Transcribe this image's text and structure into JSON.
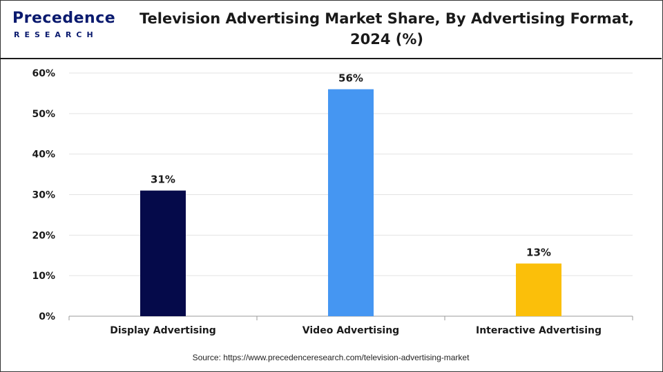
{
  "logo": {
    "name": "Precedence",
    "sub": "RESEARCH"
  },
  "title_line1": "Television Advertising Market Share, By Advertising Format,",
  "title_line2": "2024 (%)",
  "source": "Source: https://www.precedenceresearch.com/television-advertising-market",
  "chart_data": {
    "type": "bar",
    "categories": [
      "Display Advertising",
      "Video Advertising",
      "Interactive Advertising"
    ],
    "values": [
      31,
      56,
      13
    ],
    "data_labels": [
      "31%",
      "56%",
      "13%"
    ],
    "colors": [
      "#050a4a",
      "#4596f2",
      "#fbbf0a"
    ],
    "ylim": [
      0,
      60
    ],
    "yticks": [
      0,
      10,
      20,
      30,
      40,
      50,
      60
    ],
    "ytick_labels": [
      "0%",
      "10%",
      "20%",
      "30%",
      "40%",
      "50%",
      "60%"
    ],
    "grid": true,
    "legend": "none"
  }
}
